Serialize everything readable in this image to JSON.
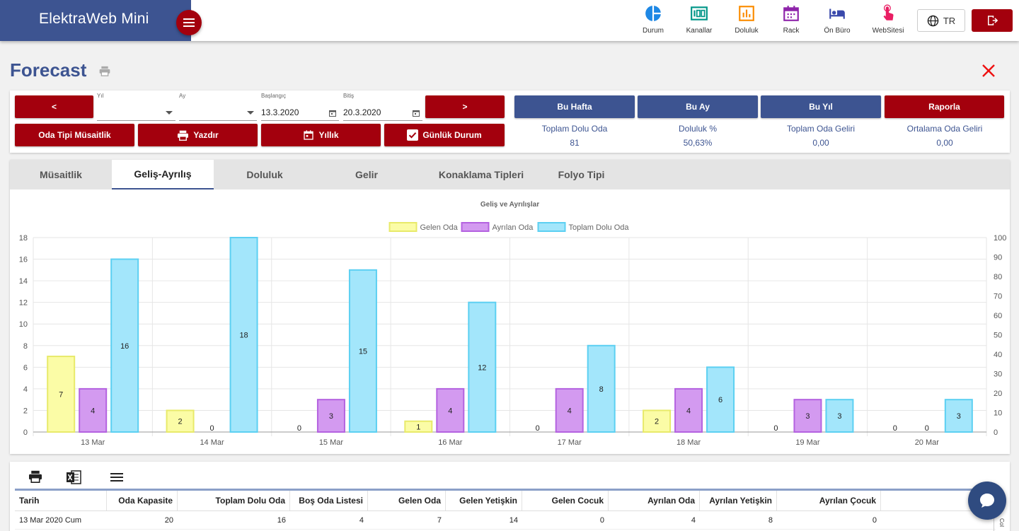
{
  "app": {
    "title": "ElektraWeb Mini"
  },
  "nav": [
    {
      "label": "Durum",
      "icon": "pie-chart-icon",
      "color": "#1e88e5"
    },
    {
      "label": "Kanallar",
      "icon": "channels-icon",
      "color": "#009688"
    },
    {
      "label": "Doluluk",
      "icon": "bar-chart-icon",
      "color": "#fb8c00"
    },
    {
      "label": "Rack",
      "icon": "calendar-icon",
      "color": "#8e24aa"
    },
    {
      "label": "Ön Büro",
      "icon": "bed-icon",
      "color": "#3949ab"
    },
    {
      "label": "WebSitesi",
      "icon": "touch-icon",
      "color": "#e91e63"
    }
  ],
  "lang": {
    "label": "TR"
  },
  "page": {
    "title": "Forecast"
  },
  "filters": {
    "prev": "<",
    "next": ">",
    "year": {
      "label": "Yıl",
      "value": ""
    },
    "month": {
      "label": "Ay",
      "value": ""
    },
    "start": {
      "label": "Başlangıç",
      "value": "13.3.2020"
    },
    "end": {
      "label": "Bitiş",
      "value": "20.3.2020"
    },
    "buttons": {
      "room_type": "Oda Tipi Müsaitlik",
      "print": "Yazdır",
      "yearly": "Yıllık",
      "daily": "Günlük Durum"
    },
    "periods": {
      "week": "Bu Hafta",
      "month": "Bu Ay",
      "year": "Bu Yıl",
      "report": "Raporla"
    }
  },
  "stats": [
    {
      "label": "Toplam Dolu Oda",
      "value": "81"
    },
    {
      "label": "Doluluk %",
      "value": "50,63%"
    },
    {
      "label": "Toplam Oda Geliri",
      "value": "0,00"
    },
    {
      "label": "Ortalama Oda Geliri",
      "value": "0,00"
    }
  ],
  "tabs": [
    "Müsaitlik",
    "Geliş-Ayrılış",
    "Doluluk",
    "Gelir",
    "Konaklama Tipleri",
    "Folyo Tipi"
  ],
  "chart_data": {
    "type": "bar",
    "title": "Geliş ve Ayrılışlar",
    "categories": [
      "13 Mar",
      "14 Mar",
      "15 Mar",
      "16 Mar",
      "17 Mar",
      "18 Mar",
      "19 Mar",
      "20 Mar"
    ],
    "series": [
      {
        "name": "Gelen Oda",
        "values": [
          7,
          2,
          0,
          1,
          0,
          2,
          0,
          0
        ],
        "color": "#fbfca6",
        "stroke": "#e8ea6a"
      },
      {
        "name": "Ayrılan Oda",
        "values": [
          4,
          0,
          3,
          4,
          4,
          4,
          3,
          0
        ],
        "color": "#d39af0",
        "stroke": "#b462e0"
      },
      {
        "name": "Toplam Dolu Oda",
        "values": [
          16,
          18,
          15,
          12,
          8,
          6,
          3,
          3
        ],
        "color": "#a3e6fb",
        "stroke": "#5cd0f2"
      }
    ],
    "ylim": [
      0,
      18
    ],
    "y_ticks": [
      0,
      2,
      4,
      6,
      8,
      10,
      12,
      14,
      16,
      18
    ],
    "y2lim": [
      0,
      100
    ],
    "y2_ticks": [
      0,
      10,
      20,
      30,
      40,
      50,
      60,
      70,
      80,
      90,
      100
    ],
    "legend": "top",
    "grid": true
  },
  "table": {
    "headers": [
      "Tarih",
      "Oda Kapasite",
      "Toplam Dolu Oda",
      "Boş Oda Listesi",
      "Gelen Oda",
      "Gelen Yetişkin",
      "Gelen Cocuk",
      "Ayrılan Oda",
      "Ayrılan Yetişkin",
      "Ayrılan Çocuk"
    ],
    "rows": [
      [
        "13 Mar 2020 Cum",
        "20",
        "16",
        "4",
        "7",
        "14",
        "0",
        "4",
        "8",
        "0"
      ]
    ],
    "side_label": "Col"
  }
}
